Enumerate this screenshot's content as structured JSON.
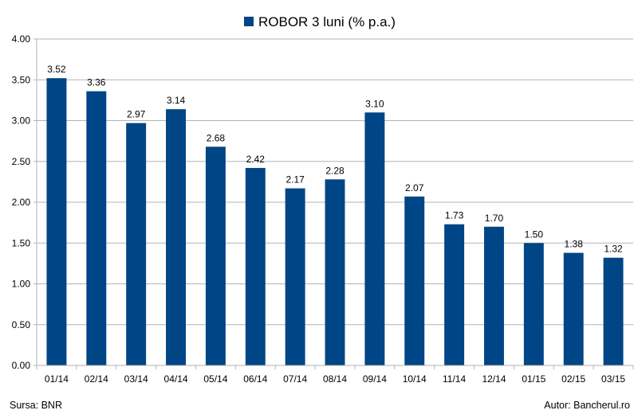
{
  "chart_data": {
    "type": "bar",
    "categories": [
      "01/14",
      "02/14",
      "03/14",
      "04/14",
      "05/14",
      "06/14",
      "07/14",
      "08/14",
      "09/14",
      "10/14",
      "11/14",
      "12/14",
      "01/15",
      "02/15",
      "03/15"
    ],
    "series": [
      {
        "name": "ROBOR 3 luni (% p.a.)",
        "values": [
          3.52,
          3.36,
          2.97,
          3.14,
          2.68,
          2.42,
          2.17,
          2.28,
          3.1,
          2.07,
          1.73,
          1.7,
          1.5,
          1.38,
          1.32
        ],
        "labels": [
          "3.52",
          "3.36",
          "2.97",
          "3.14",
          "2.68",
          "2.42",
          "2.17",
          "2.28",
          "3.10",
          "2.07",
          "1.73",
          "1.70",
          "1.50",
          "1.38",
          "1.32"
        ],
        "color": "#004586"
      }
    ],
    "ylim": [
      0,
      4
    ],
    "yticks": [
      "0.00",
      "0.50",
      "1.00",
      "1.50",
      "2.00",
      "2.50",
      "3.00",
      "3.50",
      "4.00"
    ],
    "grid": true,
    "legend_position": "top-center"
  },
  "footer": {
    "source": "Sursa: BNR",
    "author": "Autor: Bancherul.ro"
  }
}
